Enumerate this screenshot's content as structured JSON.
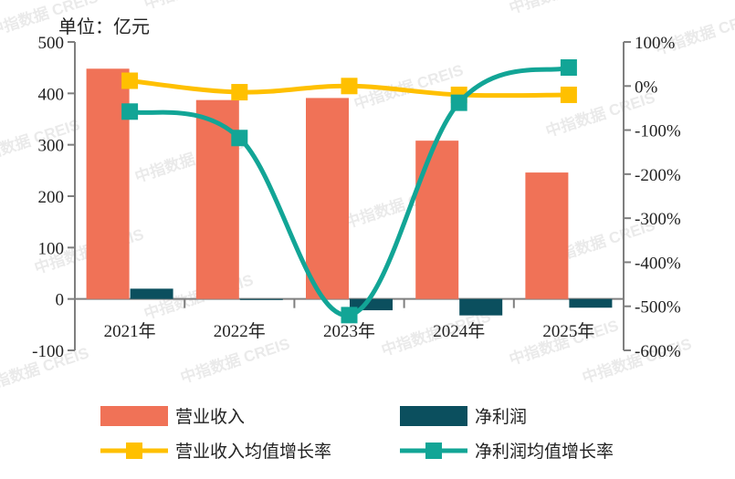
{
  "unit_label": "单位：亿元",
  "watermark": "中指数据 CREIS",
  "colors": {
    "revenue": "#f07257",
    "profit": "#0b4f5e",
    "revenue_growth": "#ffc000",
    "profit_growth": "#12a596",
    "axis": "#7f7f7f"
  },
  "legend": [
    {
      "label": "营业收入",
      "kind": "bar",
      "color": "#f07257"
    },
    {
      "label": "净利润",
      "kind": "bar",
      "color": "#0b4f5e"
    },
    {
      "label": "营业收入均值增长率",
      "kind": "line",
      "color": "#ffc000"
    },
    {
      "label": "净利润均值增长率",
      "kind": "line",
      "color": "#12a596"
    }
  ],
  "chart_data": {
    "type": "bar",
    "categories": [
      "2021年",
      "2022年",
      "2023年",
      "2024年",
      "2025年"
    ],
    "left_axis": {
      "ylim": [
        -100,
        500
      ],
      "ticks": [
        -100,
        0,
        100,
        200,
        300,
        400,
        500
      ],
      "tick_labels": [
        "-100",
        "0",
        "100",
        "200",
        "300",
        "400",
        "500"
      ]
    },
    "right_axis": {
      "ylim": [
        -600,
        100
      ],
      "ticks": [
        -600,
        -500,
        -400,
        -300,
        -200,
        -100,
        0,
        100
      ],
      "tick_labels": [
        "-600%",
        "-500%",
        "-400%",
        "-300%",
        "-200%",
        "-100%",
        "0%",
        "100%"
      ]
    },
    "series": [
      {
        "name": "营业收入",
        "type": "bar",
        "axis": "left",
        "values": [
          448,
          387,
          391,
          308,
          246
        ]
      },
      {
        "name": "净利润",
        "type": "bar",
        "axis": "left",
        "values": [
          20,
          -2,
          -22,
          -32,
          -17
        ]
      },
      {
        "name": "营业收入均值增长率",
        "type": "line",
        "axis": "right",
        "values": [
          12,
          -14,
          0,
          -20,
          -20
        ]
      },
      {
        "name": "净利润均值增长率",
        "type": "line",
        "axis": "right",
        "values": [
          -58,
          -118,
          -520,
          -38,
          42
        ]
      }
    ]
  }
}
